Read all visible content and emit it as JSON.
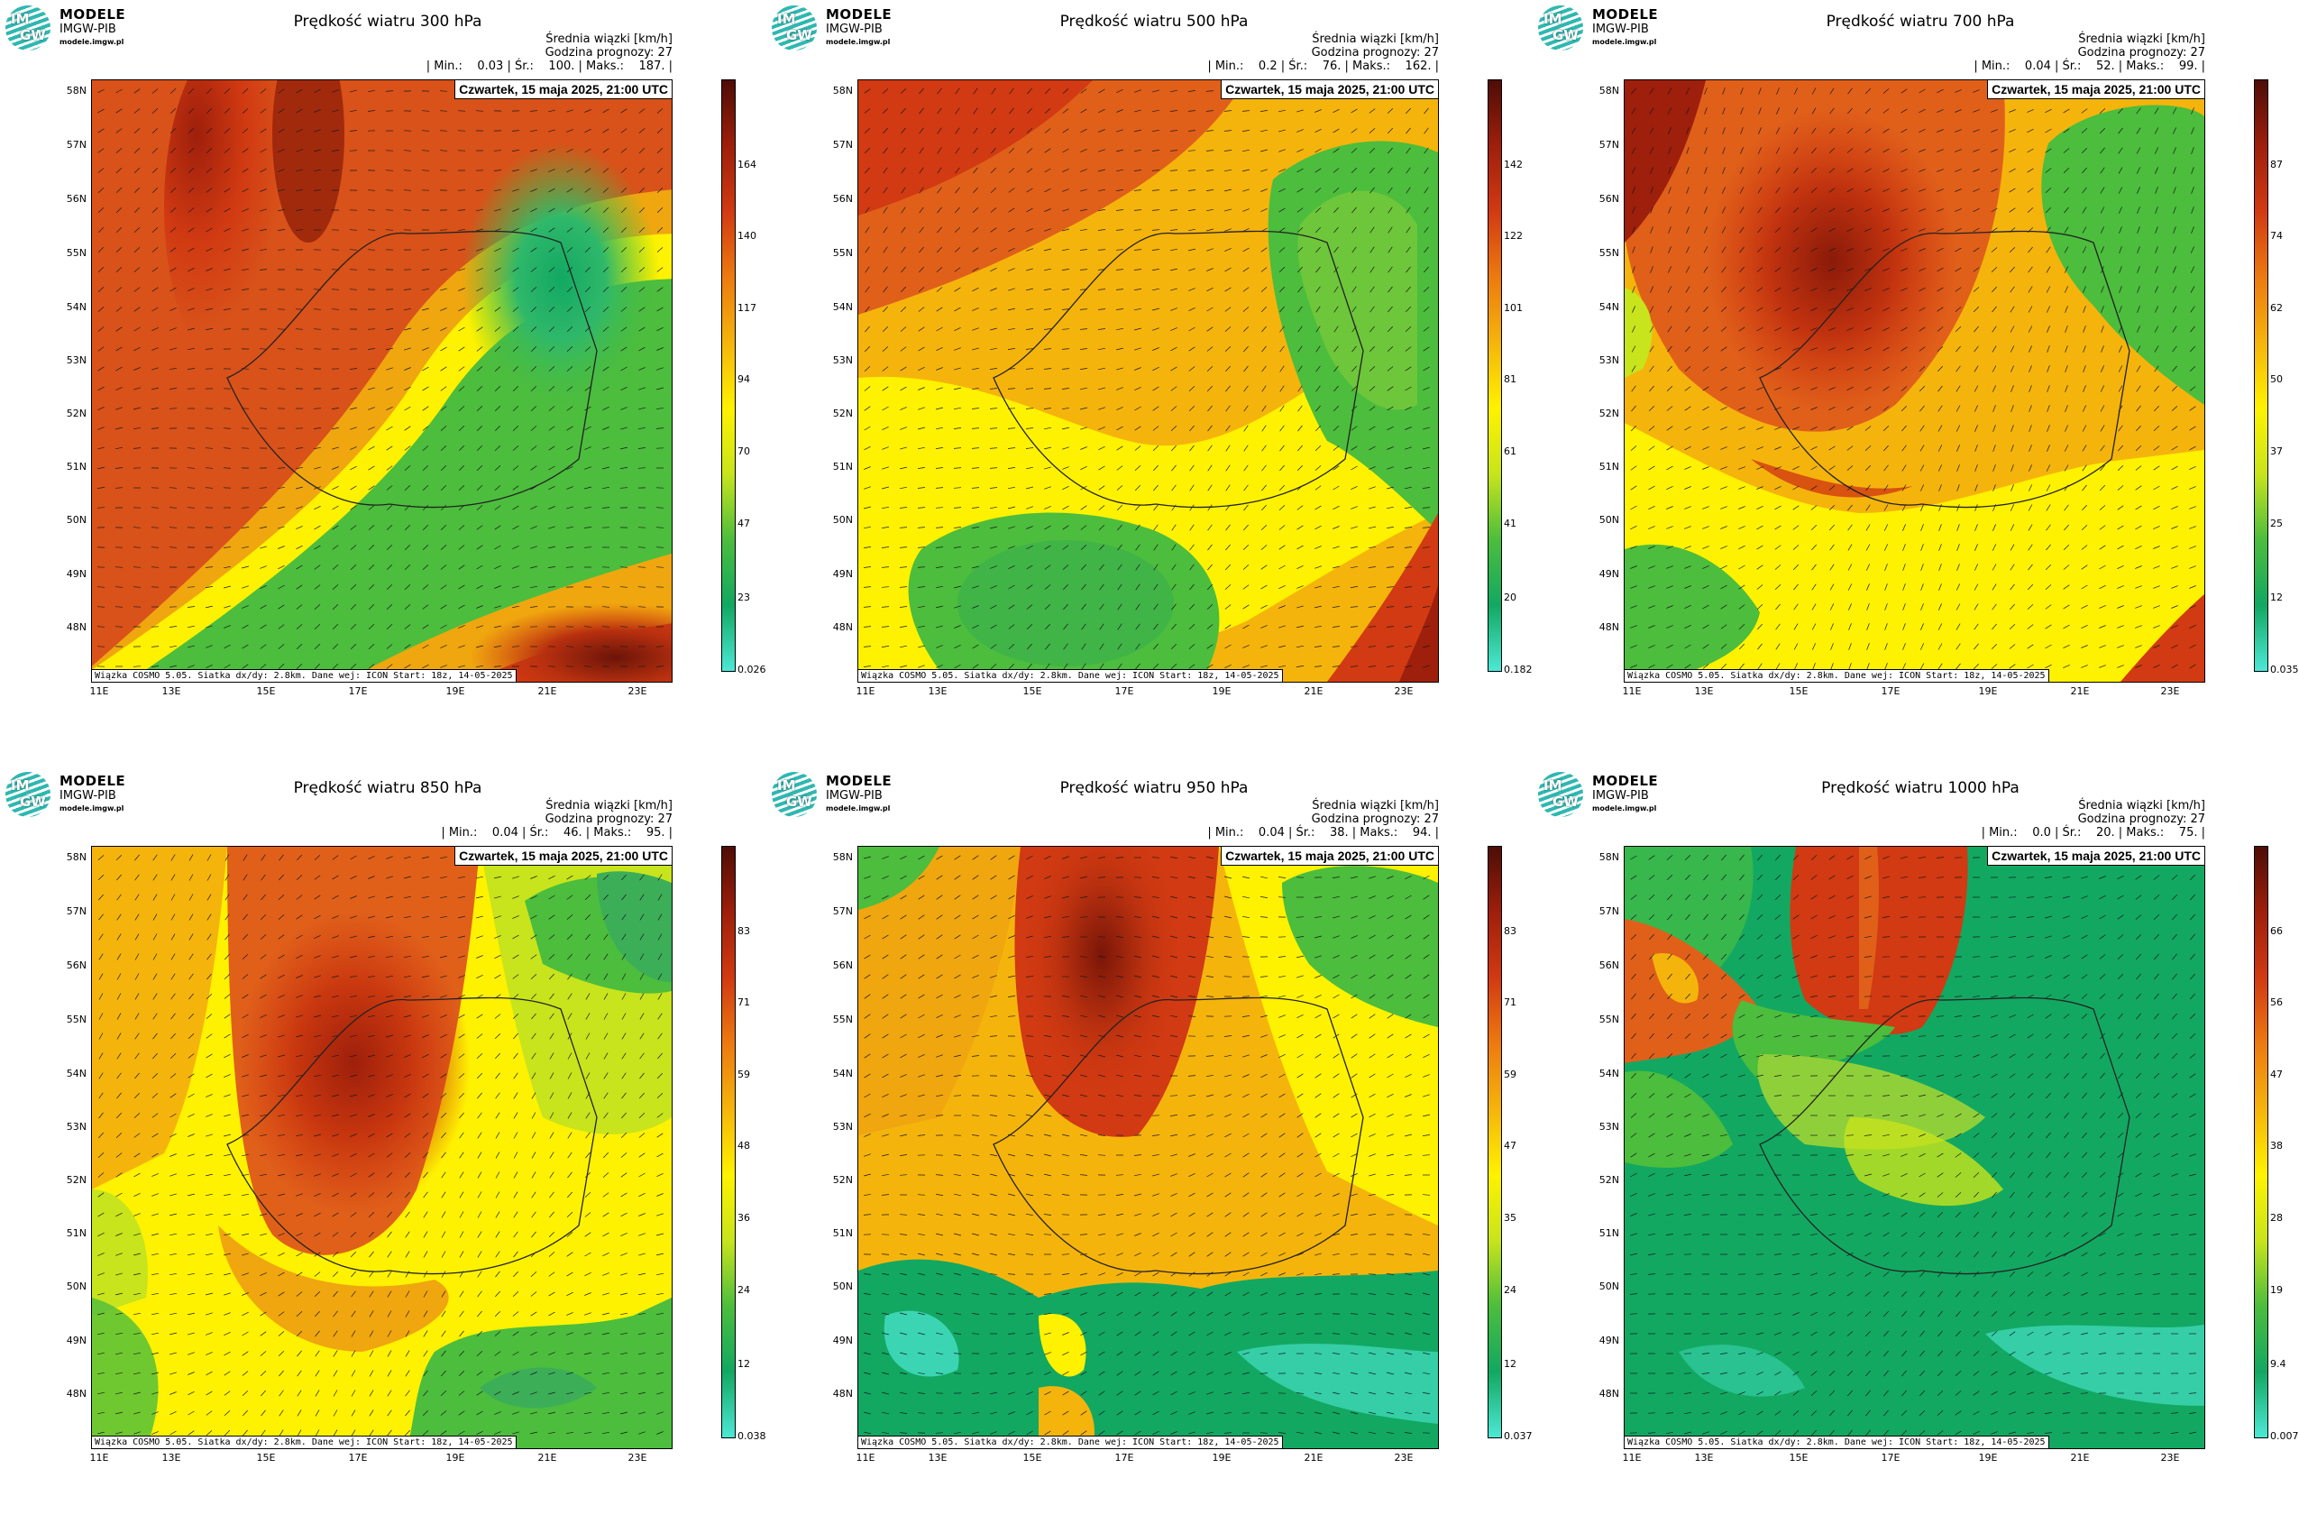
{
  "logo": {
    "brand": "MODELE",
    "org": "IMGW-PIB",
    "site": "modele.imgw.pl",
    "mark_top": "IM",
    "mark_bottom": "GW"
  },
  "common": {
    "legend_title": "Średnia wiązki [km/h]",
    "forecast_hour": "Godzina prognozy: 27",
    "valid_time": "Czwartek, 15 maja 2025, 21:00 UTC",
    "footer": "Wiązka COSMO 5.05. Siatka dx/dy: 2.8km. Dane wej: ICON Start: 18z, 14-05-2025",
    "lat_labels": [
      "58N",
      "57N",
      "56N",
      "55N",
      "54N",
      "53N",
      "52N",
      "51N",
      "50N",
      "49N",
      "48N"
    ],
    "lon_labels": [
      "11E",
      "13E",
      "15E",
      "17E",
      "19E",
      "21E",
      "23E"
    ]
  },
  "colors": {
    "scale": [
      "#4de8d6",
      "#12a862",
      "#4cbd3d",
      "#c7e41c",
      "#fff200",
      "#f5b40c",
      "#ec7a10",
      "#d13a12",
      "#9e1f0b",
      "#4e0d06"
    ]
  },
  "panels": [
    {
      "title": "Prędkość wiatru 300 hPa",
      "stats": "| Min.:    0.03 | Śr.:    100. | Maks.:    187. |",
      "colorbar_ticks": [
        "164",
        "140",
        "117",
        "94",
        "70",
        "47",
        "23",
        "0.026"
      ],
      "vmax": 188
    },
    {
      "title": "Prędkość wiatru 500 hPa",
      "stats": "| Min.:    0.2 | Śr.:    76. | Maks.:    162. |",
      "colorbar_ticks": [
        "142",
        "122",
        "101",
        "81",
        "61",
        "41",
        "20",
        "0.182"
      ],
      "vmax": 163
    },
    {
      "title": "Prędkość wiatru 700 hPa",
      "stats": "| Min.:    0.04 | Śr.:    52. | Maks.:    99. |",
      "colorbar_ticks": [
        "87",
        "74",
        "62",
        "50",
        "37",
        "25",
        "12",
        "0.035"
      ],
      "vmax": 99
    },
    {
      "title": "Prędkość wiatru 850 hPa",
      "stats": "| Min.:    0.04 | Śr.:    46. | Maks.:    95. |",
      "colorbar_ticks": [
        "83",
        "71",
        "59",
        "48",
        "36",
        "24",
        "12",
        "0.038"
      ],
      "vmax": 95
    },
    {
      "title": "Prędkość wiatru 950 hPa",
      "stats": "| Min.:    0.04 | Śr.:    38. | Maks.:    94. |",
      "colorbar_ticks": [
        "83",
        "71",
        "59",
        "47",
        "35",
        "24",
        "12",
        "0.037"
      ],
      "vmax": 94
    },
    {
      "title": "Prędkość wiatru 1000 hPa",
      "stats": "| Min.:    0.0 | Śr.:    20. | Maks.:    75. |",
      "colorbar_ticks": [
        "66",
        "56",
        "47",
        "38",
        "28",
        "19",
        "9.4",
        "0.0075"
      ],
      "vmax": 75
    }
  ]
}
